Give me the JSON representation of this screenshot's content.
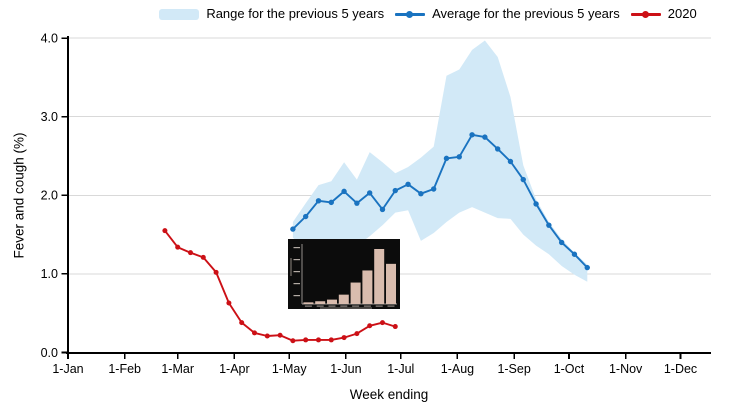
{
  "chart_data": {
    "type": "line",
    "title": "",
    "xlabel": "Week ending",
    "ylabel": "Fever and cough (%)",
    "ylim": [
      0,
      4
    ],
    "y_tick_labels": [
      "0.0",
      "1.0",
      "2.0",
      "3.0",
      "4.0"
    ],
    "x_tick_labels": [
      "1-Jan",
      "1-Feb",
      "1-Mar",
      "1-Apr",
      "1-May",
      "1-Jun",
      "1-Jul",
      "1-Aug",
      "1-Sep",
      "1-Oct",
      "1-Nov",
      "1-Dec"
    ],
    "grid": "horizontal",
    "legend_position": "top",
    "colors": {
      "band": "#d2e9f7",
      "average": "#1a73c0",
      "y2020": "#cc1016",
      "gridline": "#d9d9d9",
      "axis": "#000000"
    },
    "series": [
      {
        "name": "Range for the previous 5 years",
        "type": "band",
        "color": "#d2e9f7",
        "x": [
          "3-May",
          "10-May",
          "17-May",
          "24-May",
          "31-May",
          "7-Jun",
          "14-Jun",
          "21-Jun",
          "28-Jun",
          "5-Jul",
          "12-Jul",
          "19-Jul",
          "26-Jul",
          "2-Aug",
          "9-Aug",
          "16-Aug",
          "23-Aug",
          "30-Aug",
          "6-Sep",
          "13-Sep",
          "20-Sep",
          "27-Sep",
          "4-Oct",
          "11-Oct"
        ],
        "upper": [
          1.66,
          1.9,
          2.13,
          2.18,
          2.42,
          2.2,
          2.55,
          2.42,
          2.28,
          2.36,
          2.48,
          2.62,
          3.52,
          3.6,
          3.85,
          3.97,
          3.76,
          3.25,
          2.38,
          1.95,
          1.66,
          1.44,
          1.27,
          1.12
        ],
        "lower": [
          1.46,
          1.32,
          1.24,
          1.26,
          1.3,
          1.36,
          1.48,
          1.62,
          1.78,
          1.81,
          1.42,
          1.52,
          1.66,
          1.78,
          1.85,
          1.78,
          1.71,
          1.7,
          1.5,
          1.36,
          1.25,
          1.1,
          0.99,
          0.9
        ]
      },
      {
        "name": "Average for the previous 5 years",
        "type": "line",
        "color": "#1a73c0",
        "x": [
          "3-May",
          "10-May",
          "17-May",
          "24-May",
          "31-May",
          "7-Jun",
          "14-Jun",
          "21-Jun",
          "28-Jun",
          "5-Jul",
          "12-Jul",
          "19-Jul",
          "26-Jul",
          "2-Aug",
          "9-Aug",
          "16-Aug",
          "23-Aug",
          "30-Aug",
          "6-Sep",
          "13-Sep",
          "20-Sep",
          "27-Sep",
          "4-Oct",
          "11-Oct"
        ],
        "values": [
          1.57,
          1.73,
          1.93,
          1.91,
          2.05,
          1.9,
          2.03,
          1.82,
          2.06,
          2.14,
          2.02,
          2.08,
          2.47,
          2.49,
          2.77,
          2.74,
          2.59,
          2.43,
          2.2,
          1.89,
          1.62,
          1.4,
          1.25,
          1.08
        ]
      },
      {
        "name": "2020",
        "type": "line",
        "color": "#cc1016",
        "x": [
          "23-Feb",
          "1-Mar",
          "8-Mar",
          "15-Mar",
          "22-Mar",
          "29-Mar",
          "5-Apr",
          "12-Apr",
          "19-Apr",
          "26-Apr",
          "3-May",
          "10-May",
          "17-May",
          "24-May",
          "31-May",
          "7-Jun",
          "14-Jun",
          "21-Jun",
          "28-Jun"
        ],
        "values": [
          1.55,
          1.34,
          1.27,
          1.21,
          1.02,
          0.63,
          0.38,
          0.25,
          0.21,
          0.22,
          0.15,
          0.16,
          0.16,
          0.16,
          0.19,
          0.24,
          0.34,
          0.38,
          0.33
        ]
      }
    ],
    "inset": {
      "type": "bar",
      "description": "small embedded dark-background bar chart, axis text too small to read",
      "background": "#0c0c0c",
      "bar_color": "#d9bcae",
      "relative_heights": [
        3,
        5,
        8,
        17,
        39,
        61,
        100,
        73
      ]
    }
  }
}
